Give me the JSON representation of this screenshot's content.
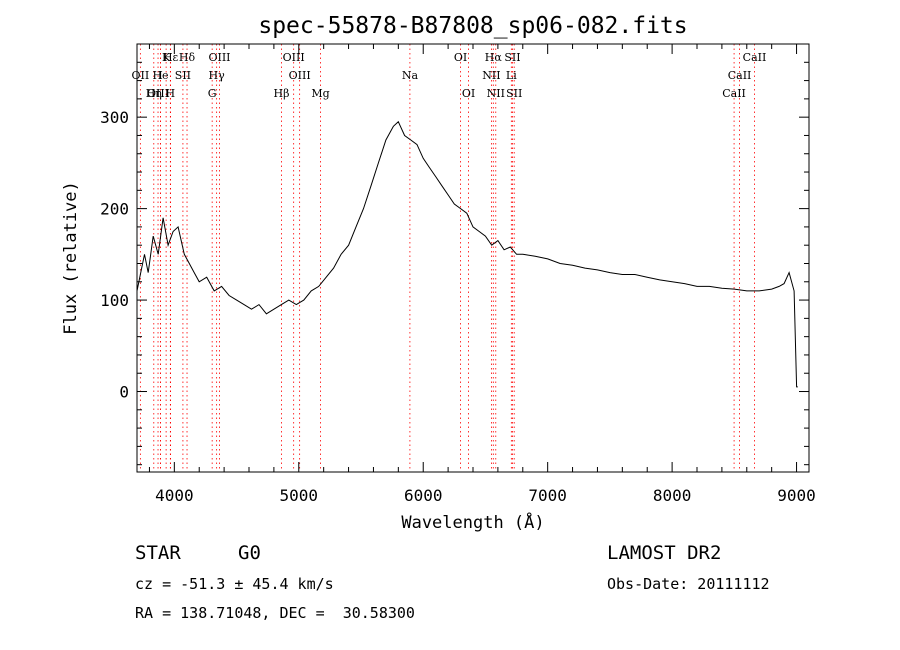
{
  "chart_data": {
    "type": "line",
    "title": "spec-55878-B87808_sp06-082.fits",
    "xlabel": "Wavelength (Å)",
    "ylabel": "Flux (relative)",
    "xlim": [
      3700,
      9100
    ],
    "ylim": [
      -88,
      380
    ],
    "xticks": [
      4000,
      5000,
      6000,
      7000,
      8000,
      9000
    ],
    "yticks": [
      0,
      100,
      200,
      300
    ],
    "grid": false,
    "line_color": "#000000",
    "marker_color": "#ff0000",
    "spectrum": {
      "x": [
        3700,
        3760,
        3790,
        3830,
        3870,
        3910,
        3950,
        3990,
        4030,
        4080,
        4120,
        4160,
        4200,
        4260,
        4320,
        4380,
        4440,
        4500,
        4560,
        4620,
        4680,
        4740,
        4800,
        4860,
        4920,
        4980,
        5040,
        5100,
        5160,
        5220,
        5280,
        5340,
        5400,
        5460,
        5520,
        5580,
        5640,
        5700,
        5760,
        5800,
        5850,
        5900,
        5950,
        6000,
        6050,
        6100,
        6150,
        6200,
        6250,
        6300,
        6350,
        6400,
        6450,
        6500,
        6550,
        6600,
        6650,
        6700,
        6750,
        6800,
        6900,
        7000,
        7100,
        7200,
        7300,
        7400,
        7500,
        7600,
        7700,
        7800,
        7900,
        8000,
        8100,
        8200,
        8300,
        8400,
        8500,
        8600,
        8700,
        8800,
        8860,
        8900,
        8940,
        8980,
        9000,
        9010
      ],
      "y": [
        110,
        150,
        130,
        170,
        150,
        190,
        160,
        175,
        180,
        150,
        140,
        130,
        120,
        125,
        110,
        115,
        105,
        100,
        95,
        90,
        95,
        85,
        90,
        95,
        100,
        95,
        100,
        110,
        115,
        125,
        135,
        150,
        160,
        180,
        200,
        225,
        250,
        275,
        290,
        295,
        280,
        275,
        270,
        255,
        245,
        235,
        225,
        215,
        205,
        200,
        195,
        180,
        175,
        170,
        160,
        165,
        155,
        158,
        150,
        150,
        148,
        145,
        140,
        138,
        135,
        133,
        130,
        128,
        128,
        125,
        122,
        120,
        118,
        115,
        115,
        113,
        112,
        110,
        110,
        112,
        115,
        118,
        130,
        110,
        5,
        5
      ]
    },
    "lines": [
      {
        "name": "Hε",
        "x": 3970,
        "row": 0
      },
      {
        "name": "K",
        "x": 3934,
        "row": 0
      },
      {
        "name": "Hδ",
        "x": 4102,
        "row": 0
      },
      {
        "name": "OIII",
        "x": 4363,
        "row": 0
      },
      {
        "name": "OIII",
        "x": 4959,
        "row": 0
      },
      {
        "name": "OI",
        "x": 6300,
        "row": 0
      },
      {
        "name": "Hα",
        "x": 6563,
        "row": 0
      },
      {
        "name": "SII",
        "x": 6717,
        "row": 0
      },
      {
        "name": "CaII",
        "x": 8662,
        "row": 0
      },
      {
        "name": "OII",
        "x": 3727,
        "row": 1
      },
      {
        "name": "He",
        "x": 3889,
        "row": 1
      },
      {
        "name": "I",
        "x": 3889,
        "row": 1
      },
      {
        "name": "SII",
        "x": 4069,
        "row": 1
      },
      {
        "name": "Hγ",
        "x": 4340,
        "row": 1
      },
      {
        "name": "OIII",
        "x": 5007,
        "row": 1
      },
      {
        "name": "Na",
        "x": 5893,
        "row": 1
      },
      {
        "name": "NII",
        "x": 6548,
        "row": 1
      },
      {
        "name": "Li",
        "x": 6708,
        "row": 1
      },
      {
        "name": "CaII",
        "x": 8542,
        "row": 1
      },
      {
        "name": "OIII",
        "x": 3869,
        "row": 2
      },
      {
        "name": "Hη",
        "x": 3835,
        "row": 2
      },
      {
        "name": "H",
        "x": 3968,
        "row": 2
      },
      {
        "name": "G",
        "x": 4304,
        "row": 2
      },
      {
        "name": "Hβ",
        "x": 4861,
        "row": 2
      },
      {
        "name": "Mg",
        "x": 5175,
        "row": 2
      },
      {
        "name": "OI",
        "x": 6364,
        "row": 2
      },
      {
        "name": "NII",
        "x": 6583,
        "row": 2
      },
      {
        "name": "SII",
        "x": 6731,
        "row": 2
      },
      {
        "name": "CaII",
        "x": 8498,
        "row": 2
      }
    ]
  },
  "info": {
    "class": "STAR",
    "subclass": "G0",
    "survey": "LAMOST DR2",
    "cz": "cz = -51.3 ± 45.4 km/s",
    "obs_date": "Obs-Date: 20111112",
    "coords": "RA = 138.71048, DEC =  30.58300"
  }
}
